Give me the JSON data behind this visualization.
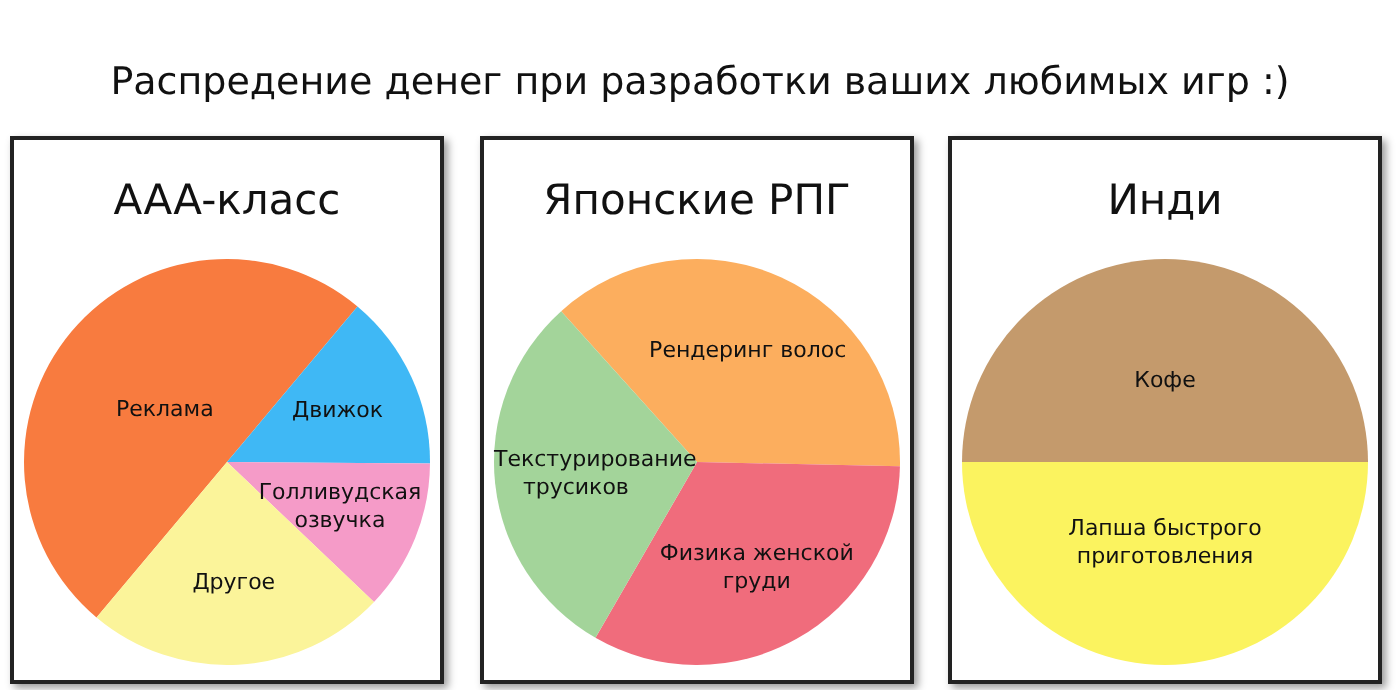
{
  "chart_data": [
    {
      "type": "pie",
      "title": "AAA-класс",
      "annotations": [
        "Распредение денег при разработки ваших любимых игр :)"
      ],
      "categories": [
        "Реклама",
        "Движок",
        "Голливудская озвучка",
        "Другое"
      ],
      "values": [
        50,
        14,
        12,
        24
      ],
      "colors": [
        "#f87b3f",
        "#3fb8f5",
        "#f59bc8",
        "#fbf49a"
      ],
      "legend": false
    },
    {
      "type": "pie",
      "title": "Японские РПГ",
      "categories": [
        "Рендеринг волос",
        "Физика женской груди",
        "Текстурирование трусиков"
      ],
      "values": [
        37,
        33,
        30
      ],
      "colors": [
        "#fcae5e",
        "#f06c7c",
        "#a3d49a"
      ],
      "legend": false
    },
    {
      "type": "pie",
      "title": "Инди",
      "categories": [
        "Кофе",
        "Лапша быстрого приготовления"
      ],
      "values": [
        50,
        50
      ],
      "colors": [
        "#c49a6c",
        "#fbf35f"
      ],
      "legend": false
    }
  ]
}
